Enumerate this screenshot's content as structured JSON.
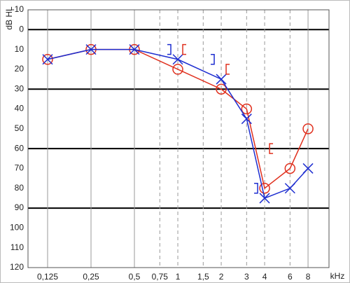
{
  "chart_data": {
    "type": "audiogram",
    "ylabel": "dB HL",
    "xlabel": "kHz",
    "xscale": "log",
    "xlim": [
      0.0914,
      11.18
    ],
    "xticks": [
      {
        "value": 0.125,
        "label": "0,125"
      },
      {
        "value": 0.25,
        "label": "0,25"
      },
      {
        "value": 0.5,
        "label": "0,5"
      },
      {
        "value": 0.75,
        "label": "0,75"
      },
      1,
      {
        "value": 1.5,
        "label": "1,5"
      },
      2,
      3,
      4,
      6,
      8
    ],
    "dashed_xticks": [
      0.75,
      1,
      1.5,
      2,
      3,
      4,
      6
    ],
    "ylim": [
      -10,
      120
    ],
    "yinverted": true,
    "yticks": [
      -10,
      0,
      10,
      20,
      30,
      40,
      50,
      60,
      70,
      80,
      90,
      100,
      110,
      120
    ],
    "bold_ygrid": [
      0,
      30,
      60,
      90
    ],
    "series": [
      {
        "color": "#e0301e",
        "marker": "circle",
        "line": true,
        "x": [
          0.125,
          0.25,
          0.5,
          1,
          2,
          3,
          4,
          6,
          8
        ],
        "values": [
          15,
          10,
          10,
          20,
          30,
          40,
          80,
          70,
          50
        ]
      },
      {
        "color": "#1e2ed0",
        "marker": "cross",
        "line": true,
        "x": [
          0.125,
          0.25,
          0.5,
          1,
          2,
          3,
          4,
          6,
          8
        ],
        "values": [
          15,
          10,
          10,
          15,
          25,
          45,
          85,
          80,
          70
        ]
      },
      {
        "color": "#e0301e",
        "marker": "bracket-open",
        "line": false,
        "x": [
          1,
          2,
          4
        ],
        "values": [
          10,
          20,
          60
        ]
      },
      {
        "color": "#1e2ed0",
        "marker": "bracket-close",
        "line": false,
        "x": [
          1,
          2,
          4
        ],
        "values": [
          10,
          15,
          80
        ]
      }
    ]
  }
}
